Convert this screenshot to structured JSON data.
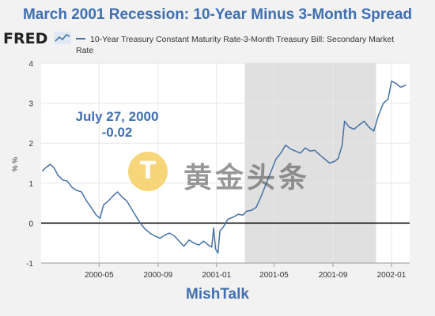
{
  "header": {
    "title": "March 2001 Recession: 10-Year Minus 3-Month Spread",
    "logo_text": "FRED",
    "legend_label": "10-Year Treasury Constant Maturity Rate-3-Month Treasury Bill: Secondary Market Rate"
  },
  "annotation": {
    "date": "July 27, 2000",
    "value": "-0.02"
  },
  "footer": {
    "credit": "MishTalk"
  },
  "watermark": {
    "letter": "T",
    "text": "黄金头条"
  },
  "colors": {
    "series": "#4572a7",
    "title": "#3f6fb0",
    "recession_shade": "#e0e0e0",
    "zero_line": "#000000",
    "background": "#f2f2f2",
    "plot_background": "#ffffff"
  },
  "chart_data": {
    "type": "line",
    "title": "March 2001 Recession: 10-Year Minus 3-Month Spread",
    "xlabel": "",
    "ylabel": "% %",
    "xlim": [
      "2000-01-01",
      "2002-02-08"
    ],
    "ylim": [
      -1,
      4
    ],
    "yticks": [
      "-1",
      "0",
      "1",
      "2",
      "3",
      "4"
    ],
    "xticks": [
      {
        "date": "2000-05-01",
        "label": "2000-05"
      },
      {
        "date": "2000-09-01",
        "label": "2000-09"
      },
      {
        "date": "2001-01-01",
        "label": "2001-01"
      },
      {
        "date": "2001-05-01",
        "label": "2001-05"
      },
      {
        "date": "2001-09-01",
        "label": "2001-09"
      },
      {
        "date": "2002-01-01",
        "label": "2002-01"
      }
    ],
    "grid": true,
    "recession": {
      "start": "2001-03-01",
      "end": "2001-11-30"
    },
    "series": [
      {
        "name": "10-Year Treasury Constant Maturity Rate-3-Month Treasury Bill: Secondary Market Rate",
        "points": [
          [
            "2000-01-03",
            1.3
          ],
          [
            "2000-01-12",
            1.4
          ],
          [
            "2000-01-20",
            1.47
          ],
          [
            "2000-01-28",
            1.38
          ],
          [
            "2000-02-05",
            1.2
          ],
          [
            "2000-02-15",
            1.08
          ],
          [
            "2000-02-25",
            1.05
          ],
          [
            "2000-03-05",
            0.9
          ],
          [
            "2000-03-15",
            0.82
          ],
          [
            "2000-03-25",
            0.78
          ],
          [
            "2000-04-05",
            0.55
          ],
          [
            "2000-04-15",
            0.38
          ],
          [
            "2000-04-25",
            0.2
          ],
          [
            "2000-05-03",
            0.12
          ],
          [
            "2000-05-10",
            0.45
          ],
          [
            "2000-05-20",
            0.55
          ],
          [
            "2000-05-30",
            0.68
          ],
          [
            "2000-06-08",
            0.78
          ],
          [
            "2000-06-18",
            0.65
          ],
          [
            "2000-06-28",
            0.55
          ],
          [
            "2000-07-08",
            0.35
          ],
          [
            "2000-07-18",
            0.15
          ],
          [
            "2000-07-27",
            -0.02
          ],
          [
            "2000-08-05",
            -0.15
          ],
          [
            "2000-08-15",
            -0.25
          ],
          [
            "2000-08-25",
            -0.32
          ],
          [
            "2000-09-05",
            -0.38
          ],
          [
            "2000-09-15",
            -0.3
          ],
          [
            "2000-09-25",
            -0.25
          ],
          [
            "2000-10-05",
            -0.32
          ],
          [
            "2000-10-15",
            -0.45
          ],
          [
            "2000-10-25",
            -0.58
          ],
          [
            "2000-11-05",
            -0.42
          ],
          [
            "2000-11-15",
            -0.5
          ],
          [
            "2000-11-25",
            -0.55
          ],
          [
            "2000-12-05",
            -0.45
          ],
          [
            "2000-12-15",
            -0.55
          ],
          [
            "2000-12-22",
            -0.6
          ],
          [
            "2000-12-26",
            -0.12
          ],
          [
            "2000-12-30",
            -0.65
          ],
          [
            "2001-01-04",
            -0.75
          ],
          [
            "2001-01-08",
            -0.2
          ],
          [
            "2001-01-15",
            -0.1
          ],
          [
            "2001-01-25",
            0.1
          ],
          [
            "2001-02-05",
            0.15
          ],
          [
            "2001-02-15",
            0.22
          ],
          [
            "2001-02-25",
            0.2
          ],
          [
            "2001-03-05",
            0.3
          ],
          [
            "2001-03-15",
            0.32
          ],
          [
            "2001-03-25",
            0.4
          ],
          [
            "2001-04-05",
            0.7
          ],
          [
            "2001-04-15",
            1.0
          ],
          [
            "2001-04-25",
            1.3
          ],
          [
            "2001-05-05",
            1.6
          ],
          [
            "2001-05-15",
            1.75
          ],
          [
            "2001-05-25",
            1.95
          ],
          [
            "2001-06-05",
            1.85
          ],
          [
            "2001-06-15",
            1.8
          ],
          [
            "2001-06-25",
            1.75
          ],
          [
            "2001-07-05",
            1.88
          ],
          [
            "2001-07-15",
            1.8
          ],
          [
            "2001-07-25",
            1.82
          ],
          [
            "2001-08-05",
            1.7
          ],
          [
            "2001-08-15",
            1.6
          ],
          [
            "2001-08-25",
            1.5
          ],
          [
            "2001-09-05",
            1.55
          ],
          [
            "2001-09-12",
            1.62
          ],
          [
            "2001-09-20",
            1.95
          ],
          [
            "2001-09-25",
            2.55
          ],
          [
            "2001-10-05",
            2.4
          ],
          [
            "2001-10-15",
            2.35
          ],
          [
            "2001-10-25",
            2.45
          ],
          [
            "2001-11-05",
            2.55
          ],
          [
            "2001-11-15",
            2.4
          ],
          [
            "2001-11-25",
            2.3
          ],
          [
            "2001-12-05",
            2.7
          ],
          [
            "2001-12-15",
            3.0
          ],
          [
            "2001-12-25",
            3.1
          ],
          [
            "2002-01-01",
            3.55
          ],
          [
            "2002-01-10",
            3.5
          ],
          [
            "2002-01-20",
            3.4
          ],
          [
            "2002-01-31",
            3.45
          ]
        ]
      }
    ]
  }
}
